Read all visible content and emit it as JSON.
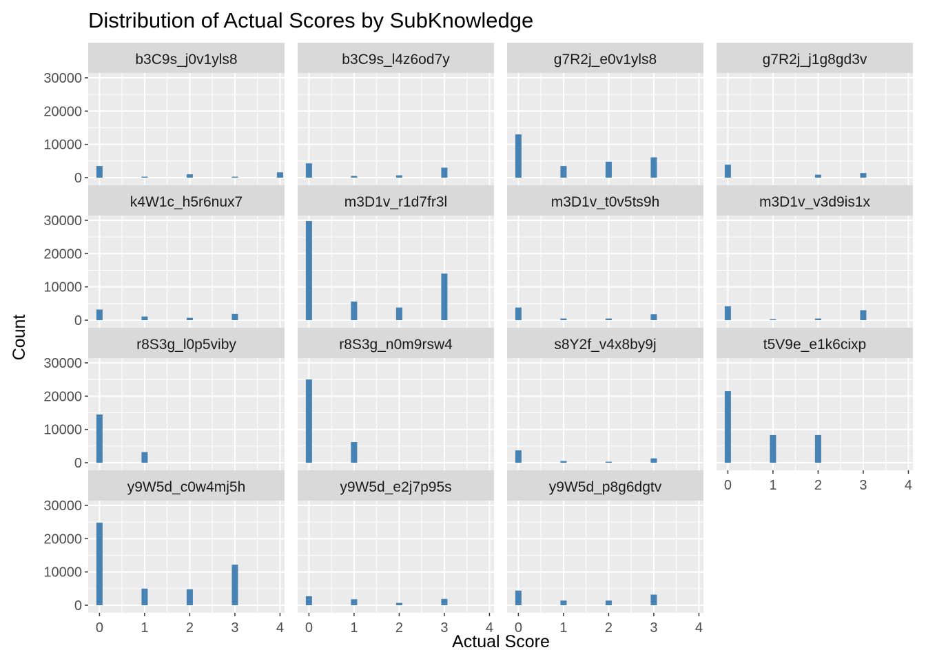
{
  "chart_data": {
    "type": "bar",
    "title": "Distribution of Actual Scores by SubKnowledge",
    "xlabel": "Actual Score",
    "ylabel": "Count",
    "x_ticks": [
      0,
      1,
      2,
      3,
      4
    ],
    "y_ticks": [
      0,
      10000,
      20000,
      30000
    ],
    "ylim": [
      0,
      30000
    ],
    "xlim": [
      -0.25,
      4.1
    ],
    "facet_columns": 4,
    "grid": true,
    "colors": {
      "bar": "#4682B4",
      "panel_bg": "#EBEBEB",
      "strip_bg": "#D9D9D9",
      "grid": "#FFFFFF",
      "text": "#4D4D4D",
      "strip_text": "#1A1A1A"
    },
    "facets": [
      {
        "label": "b3C9s_j0v1yls8",
        "x": [
          0,
          1,
          2,
          3,
          4
        ],
        "values": [
          3500,
          300,
          1000,
          300,
          1600
        ]
      },
      {
        "label": "b3C9s_l4z6od7y",
        "x": [
          0,
          1,
          2,
          3
        ],
        "values": [
          4300,
          500,
          700,
          3000
        ]
      },
      {
        "label": "g7R2j_e0v1yls8",
        "x": [
          0,
          1,
          2,
          3
        ],
        "values": [
          13000,
          3500,
          4800,
          6100
        ]
      },
      {
        "label": "g7R2j_j1g8gd3v",
        "x": [
          0,
          2,
          3
        ],
        "values": [
          3900,
          900,
          1400
        ]
      },
      {
        "label": "k4W1c_h5r6nux7",
        "x": [
          0,
          1,
          2,
          3
        ],
        "values": [
          3200,
          1100,
          700,
          1900
        ]
      },
      {
        "label": "m3D1v_r1d7fr3l",
        "x": [
          0,
          1,
          2,
          3
        ],
        "values": [
          29800,
          5600,
          3800,
          14000
        ]
      },
      {
        "label": "m3D1v_t0v5ts9h",
        "x": [
          0,
          1,
          2,
          3
        ],
        "values": [
          3800,
          500,
          500,
          1800
        ]
      },
      {
        "label": "m3D1v_v3d9is1x",
        "x": [
          0,
          1,
          2,
          3
        ],
        "values": [
          4200,
          300,
          500,
          3000
        ]
      },
      {
        "label": "r8S3g_l0p5viby",
        "x": [
          0,
          1
        ],
        "values": [
          14500,
          3200
        ]
      },
      {
        "label": "r8S3g_n0m9rsw4",
        "x": [
          0,
          1
        ],
        "values": [
          25000,
          6200
        ]
      },
      {
        "label": "s8Y2f_v4x8by9j",
        "x": [
          0,
          1,
          2,
          3
        ],
        "values": [
          3700,
          500,
          300,
          1300
        ]
      },
      {
        "label": "t5V9e_e1k6cixp",
        "x": [
          0,
          1,
          2
        ],
        "values": [
          21500,
          8300,
          8300
        ]
      },
      {
        "label": "y9W5d_c0w4mj5h",
        "x": [
          0,
          1,
          2,
          3
        ],
        "values": [
          24800,
          5000,
          4800,
          12200
        ]
      },
      {
        "label": "y9W5d_e2j7p95s",
        "x": [
          0,
          1,
          2,
          3
        ],
        "values": [
          2700,
          1800,
          700,
          1900
        ]
      },
      {
        "label": "y9W5d_p8g6dgtv",
        "x": [
          0,
          1,
          2,
          3
        ],
        "values": [
          4400,
          1400,
          1400,
          3200
        ]
      }
    ]
  }
}
